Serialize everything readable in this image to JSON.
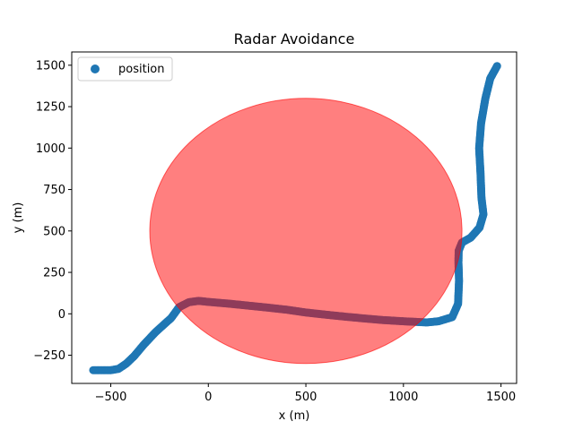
{
  "chart_data": {
    "type": "scatter",
    "title": "Radar Avoidance",
    "xlabel": "x (m)",
    "ylabel": "y (m)",
    "xlim": [
      -700,
      1580
    ],
    "ylim": [
      -420,
      1580
    ],
    "x_ticks": [
      -500,
      0,
      500,
      1000,
      1500
    ],
    "x_tick_labels": [
      "−500",
      "0",
      "500",
      "1000",
      "1500"
    ],
    "y_ticks": [
      -250,
      0,
      250,
      500,
      750,
      1000,
      1250,
      1500
    ],
    "y_tick_labels": [
      "−250",
      "0",
      "250",
      "500",
      "750",
      "1000",
      "1250",
      "1500"
    ],
    "grid": false,
    "legend": {
      "position": "top-left",
      "entries": [
        "position"
      ]
    },
    "colors": {
      "series": "#1f77b4",
      "radar_zone": "#ff0000",
      "radar_zone_opacity": 0.5
    },
    "radar_zone": {
      "center": [
        500,
        500
      ],
      "radius": 800
    },
    "series": [
      {
        "name": "position",
        "path": [
          [
            -590,
            -340
          ],
          [
            -500,
            -340
          ],
          [
            -460,
            -332
          ],
          [
            -420,
            -300
          ],
          [
            -380,
            -255
          ],
          [
            -330,
            -185
          ],
          [
            -270,
            -110
          ],
          [
            -190,
            -25
          ],
          [
            -150,
            40
          ],
          [
            -100,
            70
          ],
          [
            -50,
            78
          ],
          [
            0,
            72
          ],
          [
            100,
            62
          ],
          [
            200,
            50
          ],
          [
            300,
            38
          ],
          [
            400,
            25
          ],
          [
            500,
            8
          ],
          [
            600,
            -5
          ],
          [
            700,
            -17
          ],
          [
            800,
            -28
          ],
          [
            900,
            -38
          ],
          [
            1000,
            -45
          ],
          [
            1050,
            -48
          ],
          [
            1120,
            -52
          ],
          [
            1180,
            -45
          ],
          [
            1250,
            -20
          ],
          [
            1280,
            60
          ],
          [
            1285,
            200
          ],
          [
            1282,
            310
          ],
          [
            1283,
            380
          ],
          [
            1300,
            430
          ],
          [
            1345,
            460
          ],
          [
            1390,
            520
          ],
          [
            1410,
            600
          ],
          [
            1400,
            700
          ],
          [
            1395,
            850
          ],
          [
            1388,
            1000
          ],
          [
            1398,
            1150
          ],
          [
            1420,
            1300
          ],
          [
            1445,
            1420
          ],
          [
            1480,
            1495
          ]
        ]
      }
    ]
  }
}
